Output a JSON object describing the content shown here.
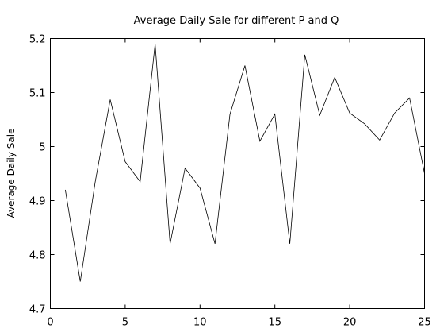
{
  "chart_data": {
    "type": "line",
    "title": "Average Daily Sale for different  P and Q",
    "xlabel": "",
    "ylabel": "Average Daily Sale",
    "xlim": [
      0,
      25
    ],
    "ylim": [
      4.7,
      5.2
    ],
    "xticks": [
      0,
      5,
      10,
      15,
      20,
      25
    ],
    "xtick_labels": [
      "0",
      "5",
      "10",
      "15",
      "20",
      "25"
    ],
    "yticks": [
      4.7,
      4.8,
      4.9,
      5.0,
      5.1,
      5.2
    ],
    "ytick_labels": [
      "4.7",
      "4.8",
      "4.9",
      "5",
      "5.1",
      "5.2"
    ],
    "grid": false,
    "series": [
      {
        "x": [
          1,
          2,
          3,
          4,
          5,
          6,
          7,
          8,
          9,
          10,
          11,
          12,
          13,
          14,
          15,
          16,
          17,
          18,
          19,
          20,
          21,
          22,
          23,
          24,
          25
        ],
        "values": [
          4.92,
          4.75,
          4.935,
          5.087,
          4.972,
          4.935,
          5.19,
          4.82,
          4.96,
          4.923,
          4.82,
          5.06,
          5.15,
          5.01,
          5.06,
          4.82,
          5.17,
          5.058,
          5.128,
          5.062,
          5.042,
          5.012,
          5.062,
          5.09,
          4.95
        ],
        "color": "#000000"
      }
    ]
  }
}
